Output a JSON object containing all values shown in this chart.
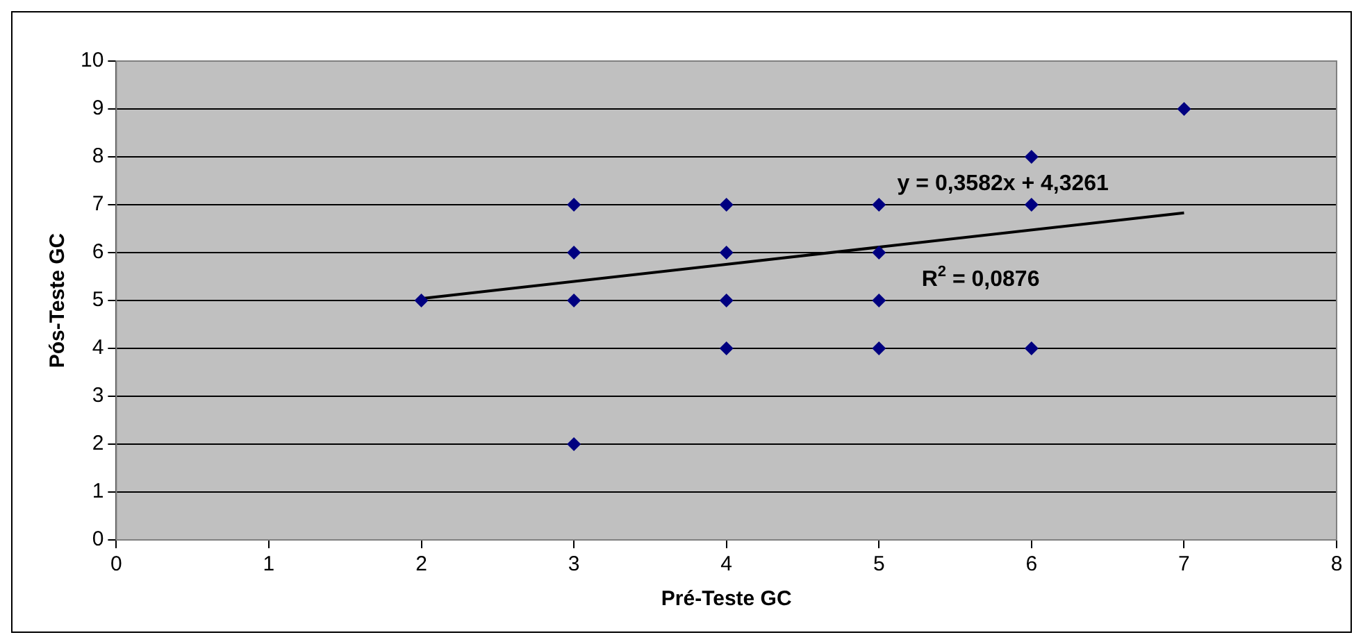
{
  "chart_data": {
    "type": "scatter",
    "xlabel": "Pré-Teste GC",
    "ylabel": "Pós-Teste GC",
    "xlim": [
      0,
      8
    ],
    "xticks": [
      0,
      1,
      2,
      3,
      4,
      5,
      6,
      7,
      8
    ],
    "ylim": [
      0,
      10
    ],
    "yticks": [
      0,
      1,
      2,
      3,
      4,
      5,
      6,
      7,
      8,
      9,
      10
    ],
    "grid": "y",
    "legend": false,
    "marker": "diamond",
    "series": [
      {
        "color": "#000080",
        "x": [
          2,
          3,
          3,
          3,
          3,
          4,
          4,
          4,
          4,
          5,
          5,
          5,
          5,
          6,
          6,
          6,
          7
        ],
        "values": [
          5,
          7,
          6,
          5,
          2,
          7,
          6,
          5,
          4,
          7,
          6,
          5,
          4,
          8,
          7,
          4,
          9
        ]
      },
      {
        "type": "line",
        "color": "#000000",
        "marker": "none",
        "line_style": "solid",
        "x": [
          2,
          7
        ],
        "values": [
          5.04,
          6.83
        ]
      }
    ],
    "annotations": [
      "y = 0,3582x + 4,3261",
      "R$^{2}$ = 0,0876"
    ]
  }
}
